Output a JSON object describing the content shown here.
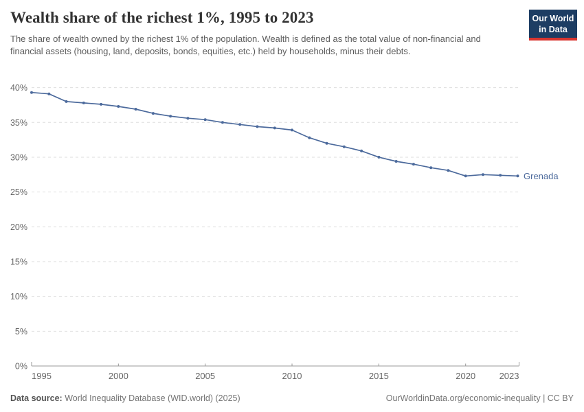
{
  "header": {
    "title": "Wealth share of the richest 1%, 1995 to 2023",
    "subtitle": "The share of wealth owned by the richest 1% of the population. Wealth is defined as the total value of non-financial and financial assets (housing, land, deposits, bonds, equities, etc.) held by households, minus their debts."
  },
  "logo": {
    "line1": "Our World",
    "line2": "in Data",
    "bg_color": "#1d3d63",
    "accent_color": "#d8352f"
  },
  "chart_data": {
    "type": "line",
    "title": "Wealth share of the richest 1%, 1995 to 2023",
    "x": [
      1995,
      1996,
      1997,
      1998,
      1999,
      2000,
      2001,
      2002,
      2003,
      2004,
      2005,
      2006,
      2007,
      2008,
      2009,
      2010,
      2011,
      2012,
      2013,
      2014,
      2015,
      2016,
      2017,
      2018,
      2019,
      2020,
      2021,
      2022,
      2023
    ],
    "series": [
      {
        "name": "Grenada",
        "color": "#4c6a9c",
        "values": [
          39.3,
          39.1,
          38.0,
          37.8,
          37.6,
          37.3,
          36.9,
          36.3,
          35.9,
          35.6,
          35.4,
          35.0,
          34.7,
          34.4,
          34.2,
          33.9,
          32.8,
          32.0,
          31.5,
          30.9,
          30.0,
          29.4,
          29.0,
          28.5,
          28.1,
          27.3,
          27.5,
          27.4,
          27.3
        ]
      }
    ],
    "xlabel": "",
    "ylabel": "",
    "ylim": [
      0,
      40
    ],
    "yticks": [
      0,
      5,
      10,
      15,
      20,
      25,
      30,
      35,
      40
    ],
    "ytick_labels": [
      "0%",
      "5%",
      "10%",
      "15%",
      "20%",
      "25%",
      "30%",
      "35%",
      "40%"
    ],
    "xticks": [
      1995,
      2000,
      2005,
      2010,
      2015,
      2020,
      2023
    ],
    "xtick_labels": [
      "1995",
      "2000",
      "2005",
      "2010",
      "2015",
      "2020",
      "2023"
    ],
    "grid": "horizontal dashed",
    "legend_position": "end-of-line label"
  },
  "footer": {
    "source_label": "Data source:",
    "source_text": " World Inequality Database (WID.world) (2025)",
    "credit": "OurWorldinData.org/economic-inequality | CC BY"
  },
  "colors": {
    "grid": "#dedede",
    "axis": "#999999",
    "tick_label": "#666666",
    "line": "#4c6a9c"
  }
}
